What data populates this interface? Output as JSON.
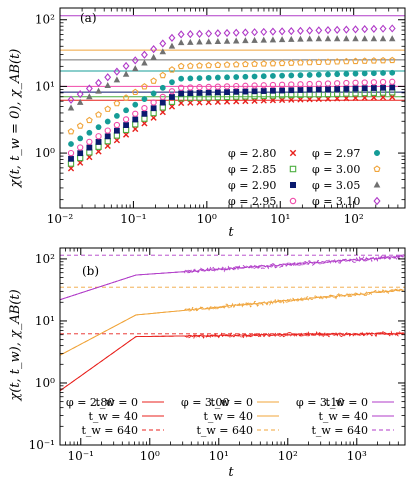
{
  "chart_data": [
    {
      "type": "scatter",
      "panel_label": "(a)",
      "xlabel": "t",
      "ylabel": "χ(t, t_w = 0), χ_AB(t)",
      "xscale": "log",
      "yscale": "log",
      "xlim": [
        0.01,
        500
      ],
      "ylim": [
        0.15,
        150
      ],
      "x_ticks": [
        {
          "v": 0.01,
          "label": "10⁻²"
        },
        {
          "v": 0.1,
          "label": "10⁻¹"
        },
        {
          "v": 1,
          "label": "10⁰"
        },
        {
          "v": 10,
          "label": "10¹"
        },
        {
          "v": 100,
          "label": "10²"
        }
      ],
      "y_ticks": [
        {
          "v": 1,
          "label": "10⁰"
        },
        {
          "v": 10,
          "label": "10¹"
        },
        {
          "v": 100,
          "label": "10²"
        }
      ],
      "grid": false,
      "legend_placement": "bottom-right",
      "series": [
        {
          "name": "φ = 2.80",
          "color": "#e8201c",
          "marker": "x",
          "plateau": 5.6,
          "ab": 6.2
        },
        {
          "name": "φ = 2.85",
          "color": "#4cae3f",
          "marker": "square-open",
          "plateau": 6.6,
          "ab": 7.0
        },
        {
          "name": "φ = 2.90",
          "color": "#0a1a6e",
          "marker": "square-filled",
          "plateau": 7.8,
          "ab": 8.2
        },
        {
          "name": "φ = 2.95",
          "color": "#f049a8",
          "marker": "circle-open",
          "plateau": 9.5,
          "ab": 10.0
        },
        {
          "name": "φ = 2.97",
          "color": "#159c97",
          "marker": "circle-filled",
          "plateau": 13.0,
          "ab": 17.0
        },
        {
          "name": "φ = 3.00",
          "color": "#f0a43a",
          "marker": "pentagon-open",
          "plateau": 20.0,
          "ab": 35.0
        },
        {
          "name": "φ = 3.05",
          "color": "#707070",
          "marker": "triangle-filled",
          "plateau": 45.0,
          "ab": 25.0
        },
        {
          "name": "φ = 3.10",
          "color": "#b03bc8",
          "marker": "diamond-open",
          "plateau": 60.0,
          "ab": 115.0
        }
      ]
    },
    {
      "type": "line",
      "panel_label": "(b)",
      "xlabel": "t",
      "ylabel": "χ(t, t_w), χ_AB(t)",
      "xscale": "log",
      "yscale": "log",
      "xlim": [
        0.05,
        5000
      ],
      "ylim": [
        0.1,
        150
      ],
      "x_ticks": [
        {
          "v": 0.1,
          "label": "10⁻¹"
        },
        {
          "v": 1,
          "label": "10⁰"
        },
        {
          "v": 10,
          "label": "10¹"
        },
        {
          "v": 100,
          "label": "10²"
        },
        {
          "v": 1000,
          "label": "10³"
        }
      ],
      "y_ticks": [
        {
          "v": 0.1,
          "label": "10⁻¹"
        },
        {
          "v": 1,
          "label": "10⁰"
        },
        {
          "v": 10,
          "label": "10¹"
        },
        {
          "v": 100,
          "label": "10²"
        }
      ],
      "grid": false,
      "legend_placement": "bottom",
      "groups": [
        {
          "phi_label": "φ = 2.80",
          "color": "#e8201c",
          "start": 0.75,
          "plateau": 5.6,
          "final": 6.3,
          "ab": 6.2,
          "series": [
            {
              "name": "t_w = 0",
              "style": "solid"
            },
            {
              "name": "t_w = 40",
              "style": "solid"
            },
            {
              "name": "t_w = 640",
              "style": "dashed"
            }
          ]
        },
        {
          "phi_label": "φ = 3.00",
          "color": "#f0a43a",
          "start": 2.8,
          "plateau": 12.5,
          "final": 32.0,
          "ab": 35.0,
          "series": [
            {
              "name": "t_w = 0",
              "style": "solid"
            },
            {
              "name": "t_w = 40",
              "style": "solid"
            },
            {
              "name": "t_w = 640",
              "style": "dashed"
            }
          ]
        },
        {
          "phi_label": "φ = 3.10",
          "color": "#b03bc8",
          "start": 22.0,
          "plateau": 55.0,
          "final": 110.0,
          "ab": 115.0,
          "series": [
            {
              "name": "t_w = 0",
              "style": "solid"
            },
            {
              "name": "t_w = 40",
              "style": "solid"
            },
            {
              "name": "t_w = 640",
              "style": "dashed"
            }
          ]
        }
      ]
    }
  ]
}
